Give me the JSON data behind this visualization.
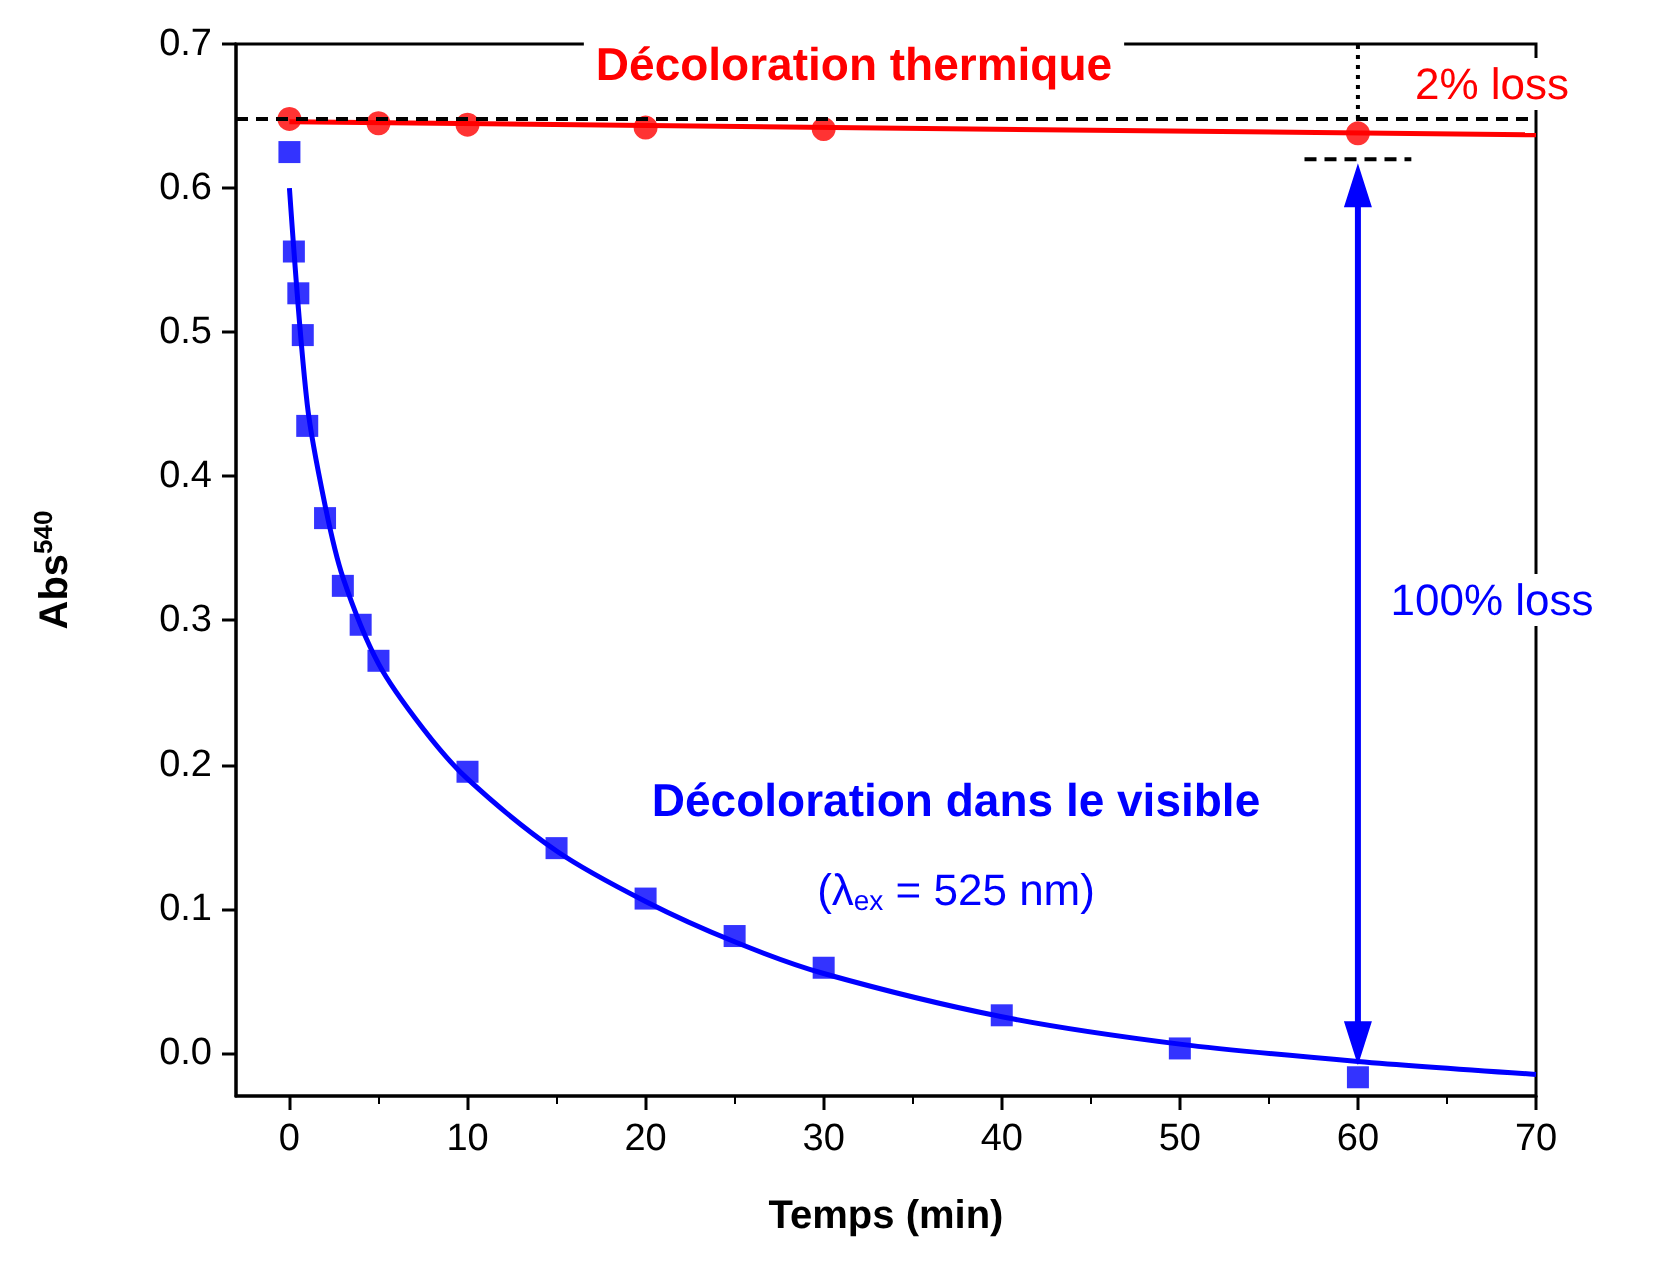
{
  "chart_data": {
    "type": "scatter",
    "xlabel": "Temps (min)",
    "ylabel": "Abs$^{540}$",
    "xlim": [
      -3,
      70
    ],
    "xticks": [
      0,
      10,
      20,
      30,
      40,
      50,
      60,
      70
    ],
    "ylim": [
      -0.03,
      0.7
    ],
    "yticks": [
      {
        "value": 0,
        "label": "0.0"
      },
      {
        "value": 0.1,
        "label": "0.1"
      },
      {
        "value": 0.2,
        "label": "0.2"
      },
      {
        "value": 0.3,
        "label": "0.3"
      },
      {
        "value": 0.4,
        "label": "0.4"
      },
      {
        "value": 0.5,
        "label": "0.5"
      },
      {
        "value": 0.6,
        "label": "0.6"
      },
      {
        "value": 0.7,
        "label": "0.7"
      }
    ],
    "grid": false,
    "ref_lines": [
      {
        "axis": "y",
        "value": 0.648,
        "color": "#000000",
        "line_style": "dashed"
      }
    ],
    "series": [
      {
        "marker": "circle",
        "color": "#ff0000",
        "x": [
          0,
          5,
          10,
          20,
          30,
          60
        ],
        "values": [
          0.648,
          0.645,
          0.644,
          0.642,
          0.641,
          0.638
        ]
      },
      {
        "type": "line",
        "marker": "none",
        "color": "#ff0000",
        "x": [
          0,
          70
        ],
        "values": [
          0.646,
          0.637
        ]
      },
      {
        "marker": "square",
        "color": "#0000ff",
        "x": [
          0,
          0.25,
          0.5,
          0.75,
          1,
          2,
          3,
          4,
          5,
          10,
          15,
          20,
          25,
          30,
          40,
          50,
          60
        ],
        "values": [
          0.625,
          0.556,
          0.527,
          0.498,
          0.435,
          0.371,
          0.324,
          0.297,
          0.272,
          0.195,
          0.142,
          0.107,
          0.081,
          0.059,
          0.026,
          0.003,
          -0.017
        ]
      },
      {
        "type": "line",
        "marker": "none",
        "color": "#0000ff",
        "x": [
          0,
          1,
          2,
          3,
          5,
          7.5,
          10,
          15,
          20,
          25,
          30,
          40,
          50,
          60,
          70
        ],
        "values": [
          0.6,
          0.45,
          0.38,
          0.33,
          0.27,
          0.225,
          0.19,
          0.14,
          0.105,
          0.077,
          0.055,
          0.025,
          0.006,
          -0.006,
          -0.015
        ]
      },
      {
        "type": "line",
        "marker": "none",
        "line_style": "dashed",
        "color": "#000000",
        "x": [
          57,
          63
        ],
        "values": [
          0.62,
          0.62
        ]
      },
      {
        "type": "line",
        "marker": "none",
        "line_style": "dotted",
        "color": "#000000",
        "x": [
          60,
          60
        ],
        "values": [
          0.648,
          0.7
        ]
      }
    ],
    "annotations": [
      "Décoloration thermique",
      "2% loss",
      "100% loss",
      "Décoloration dans le visible",
      "(λ$_{ex}$ = 525 nm)"
    ]
  }
}
